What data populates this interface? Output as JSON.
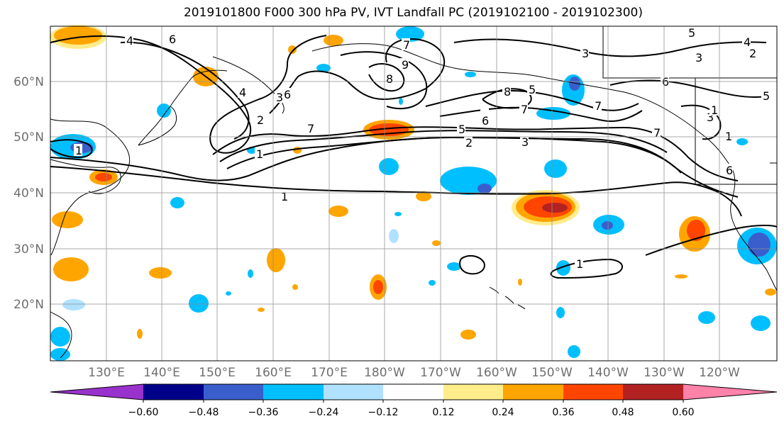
{
  "title": "2019101800 F000 300 hPa PV, IVT Landfall PC (2019102100 - 2019102300)",
  "map": {
    "lat_labels": [
      "60°N",
      "50°N",
      "40°N",
      "30°N",
      "20°N"
    ],
    "lon_labels": [
      "130°E",
      "140°E",
      "150°E",
      "160°E",
      "170°E",
      "180°W",
      "170°W",
      "160°W",
      "150°W",
      "140°W",
      "130°W",
      "120°W"
    ],
    "gridlines": true,
    "contour_color": "#000000",
    "contour_labels": [
      "6",
      "7",
      "8",
      "9",
      "6",
      "8",
      "7",
      "5",
      "3",
      "3",
      "2",
      "4",
      "5",
      "6",
      "7",
      "5",
      "4",
      "3",
      "7",
      "6",
      "5",
      "2",
      "3",
      "1",
      "1",
      "2",
      "3",
      "7",
      "6",
      "1",
      "1",
      "1",
      "1",
      "4"
    ]
  },
  "colorbar": {
    "ticks": [
      "−0.60",
      "−0.48",
      "−0.36",
      "−0.24",
      "−0.12",
      "0.12",
      "0.24",
      "0.36",
      "0.48",
      "0.60"
    ],
    "colors": [
      "#9932cc",
      "#00008b",
      "#3a5fcd",
      "#00bfff",
      "#b0e2ff",
      "#ffffff",
      "#ffec8b",
      "#ffa500",
      "#ff4500",
      "#b22222",
      "#ff82ab"
    ]
  }
}
